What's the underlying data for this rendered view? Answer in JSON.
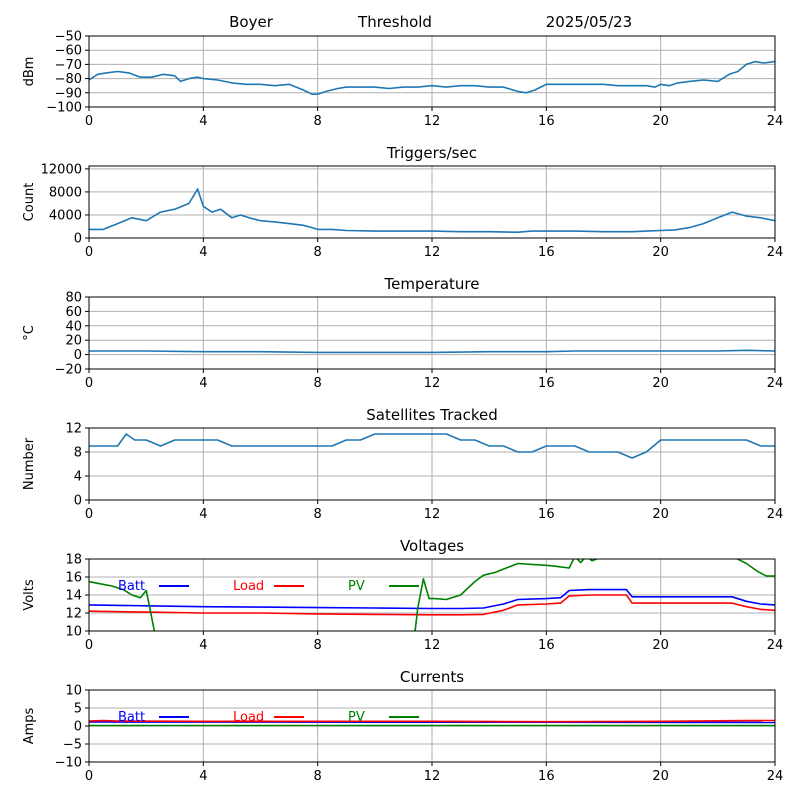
{
  "header": {
    "station": "Boyer",
    "mode": "Threshold",
    "date": "2025/05/23"
  },
  "colors": {
    "series": "#1f77b4",
    "grid": "#b0b0b0",
    "batt": "#0000ff",
    "load": "#ff0000",
    "pv": "#008000"
  },
  "chart_data": [
    {
      "type": "line",
      "title": "",
      "xlabel": "",
      "ylabel": "dBm",
      "xlim": [
        0,
        24
      ],
      "ylim": [
        -100,
        -50
      ],
      "xticks": [
        "0",
        "4",
        "8",
        "12",
        "16",
        "20",
        "24"
      ],
      "yticks": [
        "−50",
        "−60",
        "−70",
        "−80",
        "−90",
        "−100"
      ],
      "yticks_v": [
        -50,
        -60,
        -70,
        -80,
        -90,
        -100
      ],
      "grid": true,
      "series": [
        {
          "x": [
            0,
            0.3,
            0.6,
            1,
            1.4,
            1.8,
            2.2,
            2.6,
            3,
            3.2,
            3.5,
            3.8,
            4,
            4.5,
            5,
            5.5,
            6,
            6.5,
            7,
            7.5,
            7.8,
            8,
            8.3,
            8.7,
            9,
            9.5,
            10,
            10.5,
            11,
            11.5,
            12,
            12.5,
            13,
            13.5,
            14,
            14.5,
            15,
            15.3,
            15.6,
            16,
            16.5,
            17,
            17.5,
            18,
            18.5,
            19,
            19.5,
            19.8,
            20,
            20.3,
            20.6,
            21,
            21.5,
            22,
            22.4,
            22.7,
            23,
            23.3,
            23.6,
            24
          ],
          "values": [
            -81,
            -77,
            -76,
            -75,
            -76,
            -79,
            -79,
            -77,
            -78,
            -82,
            -80,
            -79,
            -80,
            -81,
            -83,
            -84,
            -84,
            -85,
            -84,
            -88,
            -91,
            -91,
            -89,
            -87,
            -86,
            -86,
            -86,
            -87,
            -86,
            -86,
            -85,
            -86,
            -85,
            -85,
            -86,
            -86,
            -89,
            -90,
            -88,
            -84,
            -84,
            -84,
            -84,
            -84,
            -85,
            -85,
            -85,
            -86,
            -84,
            -85,
            -83,
            -82,
            -81,
            -82,
            -77,
            -75,
            -70,
            -68,
            -69,
            -68
          ]
        }
      ]
    },
    {
      "type": "line",
      "title": "Triggers/sec",
      "xlabel": "",
      "ylabel": "Count",
      "xlim": [
        0,
        24
      ],
      "ylim": [
        0,
        12500
      ],
      "xticks": [
        "0",
        "4",
        "8",
        "12",
        "16",
        "20",
        "24"
      ],
      "yticks": [
        "0",
        "4000",
        "8000",
        "12000"
      ],
      "yticks_v": [
        0,
        4000,
        8000,
        12000
      ],
      "grid": true,
      "series": [
        {
          "x": [
            0,
            0.5,
            1,
            1.5,
            2,
            2.5,
            3,
            3.5,
            3.8,
            4,
            4.3,
            4.6,
            5,
            5.3,
            5.6,
            6,
            6.5,
            7,
            7.5,
            7.8,
            8,
            8.5,
            9,
            10,
            11,
            12,
            13,
            14,
            15,
            15.5,
            16,
            17,
            18,
            19,
            19.5,
            20,
            20.5,
            21,
            21.5,
            22,
            22.5,
            23,
            23.5,
            24
          ],
          "values": [
            1500,
            1500,
            2500,
            3500,
            3000,
            4500,
            5000,
            6000,
            8500,
            5500,
            4500,
            5000,
            3500,
            4000,
            3500,
            3000,
            2800,
            2500,
            2200,
            1800,
            1500,
            1500,
            1300,
            1200,
            1200,
            1200,
            1100,
            1100,
            1000,
            1200,
            1200,
            1200,
            1100,
            1100,
            1200,
            1300,
            1400,
            1800,
            2500,
            3500,
            4500,
            3800,
            3500,
            3000
          ]
        }
      ]
    },
    {
      "type": "line",
      "title": "Temperature",
      "xlabel": "",
      "ylabel": "°C",
      "xlim": [
        0,
        24
      ],
      "ylim": [
        -20,
        80
      ],
      "xticks": [
        "0",
        "4",
        "8",
        "12",
        "16",
        "20",
        "24"
      ],
      "yticks": [
        "−20",
        "0",
        "20",
        "40",
        "60",
        "80"
      ],
      "yticks_v": [
        -20,
        0,
        20,
        40,
        60,
        80
      ],
      "grid": true,
      "series": [
        {
          "x": [
            0,
            2,
            4,
            6,
            8,
            10,
            12,
            14,
            16,
            17,
            20,
            22,
            23,
            24
          ],
          "values": [
            5,
            5,
            4,
            4,
            3,
            3,
            3,
            4,
            4,
            5,
            5,
            5,
            6,
            5
          ]
        }
      ]
    },
    {
      "type": "line",
      "title": "Satellites Tracked",
      "xlabel": "",
      "ylabel": "Number",
      "xlim": [
        0,
        24
      ],
      "ylim": [
        0,
        12
      ],
      "xticks": [
        "0",
        "4",
        "8",
        "12",
        "16",
        "20",
        "24"
      ],
      "yticks": [
        "0",
        "4",
        "8",
        "12"
      ],
      "yticks_v": [
        0,
        4,
        8,
        12
      ],
      "grid": true,
      "series": [
        {
          "x": [
            0,
            0.5,
            1,
            1.3,
            1.6,
            2,
            2.5,
            3,
            3.5,
            4,
            4.5,
            5,
            5.5,
            6,
            6.5,
            7,
            7.5,
            8,
            8.5,
            9,
            9.5,
            10,
            10.5,
            11,
            11.5,
            12,
            12.5,
            13,
            13.5,
            14,
            14.5,
            15,
            15.5,
            16,
            16.5,
            17,
            17.5,
            18,
            18.5,
            19,
            19.5,
            20,
            20.5,
            21,
            21.5,
            22,
            22.5,
            23,
            23.5,
            24
          ],
          "values": [
            9,
            9,
            9,
            11,
            10,
            10,
            9,
            10,
            10,
            10,
            10,
            9,
            9,
            9,
            9,
            9,
            9,
            9,
            9,
            10,
            10,
            11,
            11,
            11,
            11,
            11,
            11,
            10,
            10,
            9,
            9,
            8,
            8,
            9,
            9,
            9,
            8,
            8,
            8,
            7,
            8,
            10,
            10,
            10,
            10,
            10,
            10,
            10,
            9,
            9
          ]
        }
      ]
    },
    {
      "type": "line",
      "title": "Voltages",
      "xlabel": "",
      "ylabel": "Volts",
      "xlim": [
        0,
        24
      ],
      "ylim": [
        10,
        18
      ],
      "xticks": [
        "0",
        "4",
        "8",
        "12",
        "16",
        "20",
        "24"
      ],
      "yticks": [
        "10",
        "12",
        "14",
        "16",
        "18"
      ],
      "yticks_v": [
        10,
        12,
        14,
        16,
        18
      ],
      "grid": true,
      "legend": "top-left",
      "series": [
        {
          "name": "Batt",
          "color": "#0000ff",
          "x": [
            0,
            2,
            4,
            6,
            8,
            10,
            12,
            13,
            13.8,
            14.5,
            15,
            16,
            16.5,
            16.8,
            17.5,
            18.5,
            18.8,
            19,
            20,
            21,
            22,
            22.5,
            23,
            23.5,
            24
          ],
          "values": [
            12.9,
            12.8,
            12.7,
            12.65,
            12.6,
            12.55,
            12.5,
            12.5,
            12.55,
            13.0,
            13.5,
            13.6,
            13.7,
            14.5,
            14.6,
            14.6,
            14.6,
            13.8,
            13.8,
            13.8,
            13.8,
            13.8,
            13.3,
            13.0,
            12.9
          ]
        },
        {
          "name": "Load",
          "color": "#ff0000",
          "x": [
            0,
            2,
            4,
            6,
            8,
            10,
            12,
            13,
            13.8,
            14.5,
            15,
            16,
            16.5,
            16.8,
            17.5,
            18.5,
            18.8,
            19,
            20,
            21,
            22,
            22.5,
            23,
            23.5,
            24
          ],
          "values": [
            12.2,
            12.1,
            12.0,
            12.0,
            11.9,
            11.85,
            11.8,
            11.8,
            11.85,
            12.3,
            12.9,
            13.0,
            13.1,
            13.9,
            14.0,
            14.0,
            14.0,
            13.1,
            13.1,
            13.1,
            13.1,
            13.1,
            12.7,
            12.4,
            12.3
          ]
        },
        {
          "name": "PV",
          "color": "#008000",
          "x": [
            0,
            0.3,
            0.8,
            1.2,
            1.5,
            1.8,
            2.0,
            2.1,
            2.3,
            11.4,
            11.5,
            11.7,
            11.9,
            12.1,
            12.5,
            13,
            13.5,
            13.8,
            14.2,
            14.6,
            15,
            15.5,
            16,
            16.3,
            16.8,
            17,
            17.2,
            17.4,
            17.6,
            18,
            22.5,
            23,
            23.4,
            23.7,
            24
          ],
          "values": [
            15.5,
            15.3,
            15.0,
            14.6,
            14.0,
            13.7,
            14.5,
            13.0,
            9.8,
            9.8,
            12.5,
            15.8,
            13.6,
            13.6,
            13.5,
            14.0,
            15.5,
            16.2,
            16.5,
            17.0,
            17.5,
            17.4,
            17.3,
            17.2,
            17.0,
            18.3,
            17.6,
            18.3,
            17.8,
            18.3,
            18.3,
            17.5,
            16.6,
            16.1,
            16.1
          ]
        }
      ]
    },
    {
      "type": "line",
      "title": "Currents",
      "xlabel": "",
      "ylabel": "Amps",
      "xlim": [
        0,
        24
      ],
      "ylim": [
        -10,
        10
      ],
      "xticks": [
        "0",
        "4",
        "8",
        "12",
        "16",
        "20",
        "24"
      ],
      "yticks": [
        "−10",
        "−5",
        "0",
        "5",
        "10"
      ],
      "yticks_v": [
        -10,
        -5,
        0,
        5,
        10
      ],
      "grid": true,
      "legend": "top-left",
      "series": [
        {
          "name": "Batt",
          "color": "#0000ff",
          "x": [
            0,
            24
          ],
          "values": [
            1.1,
            1.0
          ]
        },
        {
          "name": "Load",
          "color": "#ff0000",
          "x": [
            0,
            0.5,
            1,
            4,
            8,
            12,
            16,
            20,
            23,
            24
          ],
          "values": [
            1.4,
            1.5,
            1.4,
            1.3,
            1.3,
            1.3,
            1.2,
            1.3,
            1.5,
            1.5
          ]
        },
        {
          "name": "PV",
          "color": "#008000",
          "x": [
            0,
            24
          ],
          "values": [
            0.1,
            0.1
          ]
        }
      ]
    }
  ]
}
